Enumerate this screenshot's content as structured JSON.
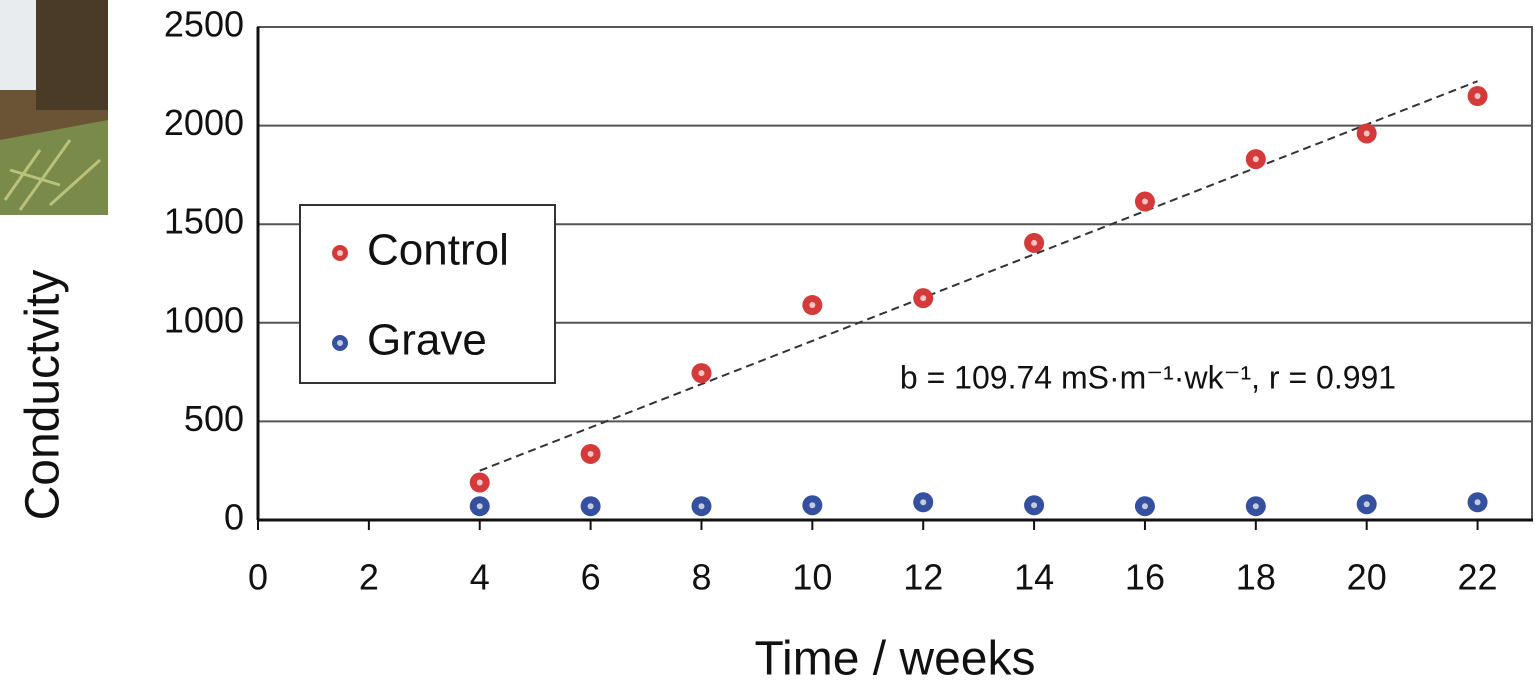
{
  "chart_data": {
    "type": "scatter",
    "x_label": "Time / weeks",
    "y_label": "Conductvity",
    "annotation": "b = 109.74 mS·m⁻¹·wk⁻¹, r = 0.991",
    "x": [
      4,
      6,
      8,
      10,
      12,
      14,
      16,
      18,
      20,
      22
    ],
    "series": [
      {
        "name": "Control",
        "color": "#d43a3a",
        "values": [
          190,
          335,
          745,
          1090,
          1125,
          1405,
          1615,
          1830,
          1960,
          2150
        ]
      },
      {
        "name": "Grave",
        "color": "#34509e",
        "values": [
          70,
          70,
          70,
          75,
          90,
          75,
          70,
          70,
          80,
          90
        ]
      }
    ],
    "trend": {
      "x": [
        4,
        22
      ],
      "values": [
        250,
        2225
      ]
    },
    "xlim": [
      0,
      23
    ],
    "ylim": [
      0,
      2500
    ],
    "xticks": [
      0,
      2,
      4,
      6,
      8,
      10,
      12,
      14,
      16,
      18,
      20,
      22
    ],
    "yticks": [
      0,
      500,
      1000,
      1500,
      2000,
      2500
    ],
    "grid": true,
    "legend": "center left"
  }
}
